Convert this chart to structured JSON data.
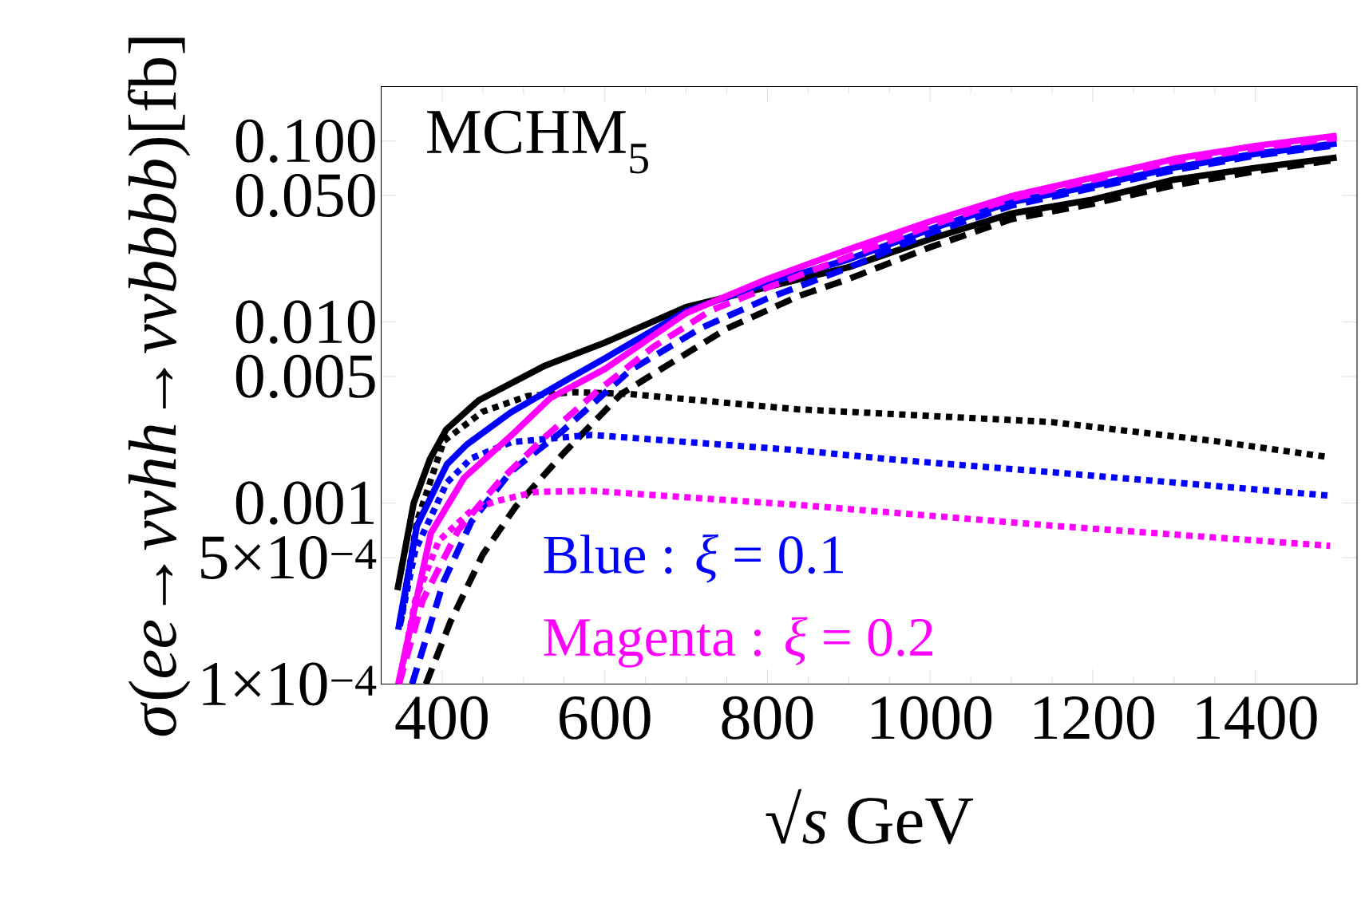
{
  "chart_data": {
    "type": "line",
    "title": "MCHM$_{5}$",
    "xlabel": "√*s*  GeV",
    "ylabel": "*σ*(*ee*→*ννhh*→*ννbbbb*)[fb]",
    "annotations": [
      "Blue : *ξ* = 0.1",
      "Magenta : *ξ* = 0.2"
    ],
    "log": "y",
    "xlim": [
      325,
      1525
    ],
    "ylim": [
      0.0001,
      0.2
    ],
    "xticks": [
      400,
      600,
      800,
      1000,
      1200,
      1400
    ],
    "yticks": [
      {
        "value": 0.1,
        "label": "0.100"
      },
      {
        "value": 0.05,
        "label": "0.050"
      },
      {
        "value": 0.01,
        "label": "0.010"
      },
      {
        "value": 0.005,
        "label": "0.005"
      },
      {
        "value": 0.001,
        "label": "0.001"
      },
      {
        "value": 0.0005,
        "label": "5×10$^{−4}$"
      },
      {
        "value": 0.0001,
        "label": "1×10$^{−4}$"
      }
    ],
    "series": [
      {
        "color": "#000000",
        "line_style": "solid",
        "x": [
          345,
          365,
          385,
          405,
          445,
          525,
          600,
          700,
          800,
          900,
          1000,
          1100,
          1200,
          1300,
          1400,
          1500
        ],
        "values": [
          0.00033,
          0.001,
          0.00175,
          0.00255,
          0.0037,
          0.0057,
          0.0077,
          0.0121,
          0.0156,
          0.0201,
          0.0287,
          0.0398,
          0.0475,
          0.0612,
          0.071,
          0.081
        ]
      },
      {
        "color": "#000000",
        "line_style": "dashed",
        "x": [
          380,
          410,
          450,
          490,
          550,
          620,
          675,
          750,
          840,
          900,
          1000,
          1100,
          1200,
          1300,
          1400,
          1500
        ],
        "values": [
          0.0001,
          0.00022,
          0.00052,
          0.00095,
          0.0019,
          0.004,
          0.0057,
          0.0092,
          0.014,
          0.0173,
          0.0259,
          0.037,
          0.045,
          0.057,
          0.068,
          0.079
        ]
      },
      {
        "color": "#000000",
        "line_style": "dotted",
        "x": [
          349,
          369,
          402,
          450,
          505,
          562,
          631,
          836,
          1150,
          1350,
          1488
        ],
        "values": [
          0.00022,
          0.00079,
          0.0022,
          0.0032,
          0.0039,
          0.0041,
          0.004,
          0.0033,
          0.0028,
          0.0022,
          0.0018
        ]
      },
      {
        "color": "#0000ff",
        "line_style": "solid",
        "x": [
          346,
          369,
          406,
          430,
          484,
          557,
          600,
          700,
          800,
          900,
          1000,
          1100,
          1200,
          1300,
          1400,
          1500
        ],
        "values": [
          0.0002,
          0.00075,
          0.00164,
          0.0021,
          0.00316,
          0.0049,
          0.0063,
          0.0115,
          0.0164,
          0.0222,
          0.0325,
          0.046,
          0.0567,
          0.0713,
          0.085,
          0.097
        ]
      },
      {
        "color": "#0000ff",
        "line_style": "dashed",
        "x": [
          363,
          402,
          436,
          485,
          548,
          631,
          719,
          800,
          900,
          1000,
          1100,
          1200,
          1300,
          1400,
          1500
        ],
        "values": [
          0.0001,
          0.00037,
          0.00079,
          0.0015,
          0.0025,
          0.0054,
          0.0093,
          0.0135,
          0.02,
          0.031,
          0.044,
          0.055,
          0.069,
          0.083,
          0.095
        ]
      },
      {
        "color": "#0000ff",
        "line_style": "dotted",
        "x": [
          348,
          367,
          406,
          436,
          485,
          583,
          836,
          960,
          1150,
          1490
        ],
        "values": [
          0.00021,
          0.00055,
          0.0013,
          0.00177,
          0.00217,
          0.00238,
          0.00196,
          0.00173,
          0.00148,
          0.0011
        ]
      },
      {
        "color": "#ff00ff",
        "line_style": "solid",
        "x": [
          346,
          386,
          427,
          484,
          533,
          600,
          700,
          800,
          900,
          1000,
          1100,
          1200,
          1300,
          1400,
          1500
        ],
        "values": [
          0.0001,
          0.00068,
          0.00138,
          0.00234,
          0.0038,
          0.0055,
          0.0112,
          0.0173,
          0.0252,
          0.036,
          0.0496,
          0.0628,
          0.0796,
          0.094,
          0.107
        ]
      },
      {
        "color": "#ff00ff",
        "line_style": "dashed",
        "x": [
          347,
          376,
          420,
          469,
          528,
          592,
          660,
          729,
          800,
          900,
          1000,
          1100,
          1200,
          1300,
          1400,
          1500
        ],
        "values": [
          0.0001,
          0.00029,
          0.00071,
          0.0013,
          0.00235,
          0.0042,
          0.0073,
          0.0115,
          0.0155,
          0.023,
          0.034,
          0.048,
          0.061,
          0.077,
          0.091,
          0.104
        ]
      },
      {
        "color": "#ff00ff",
        "line_style": "dotted",
        "x": [
          347,
          367,
          396,
          436,
          465,
          514,
          583,
          846,
          1150,
          1492
        ],
        "values": [
          0.0001,
          0.00029,
          0.00062,
          0.00091,
          0.00102,
          0.00115,
          0.00117,
          0.00097,
          0.00075,
          0.00058
        ]
      }
    ]
  }
}
